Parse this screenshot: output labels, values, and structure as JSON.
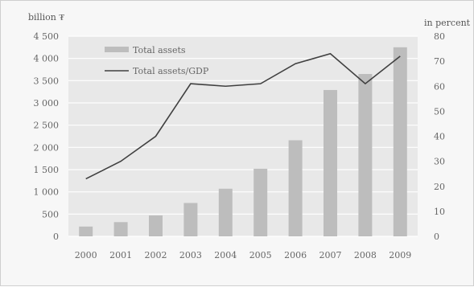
{
  "chart_data": {
    "type": "bar",
    "categories": [
      "2000",
      "2001",
      "2002",
      "2003",
      "2004",
      "2005",
      "2006",
      "2007",
      "2008",
      "2009"
    ],
    "series": [
      {
        "name": "Total assets",
        "type": "bar",
        "axis": "left",
        "values": [
          220,
          320,
          470,
          750,
          1070,
          1520,
          2160,
          3290,
          3650,
          4250
        ]
      },
      {
        "name": "Total assets/GDP",
        "type": "line",
        "axis": "right",
        "values": [
          23,
          30,
          40,
          61,
          60,
          61,
          69,
          73,
          61,
          72
        ]
      }
    ],
    "left_axis": {
      "label": "billion ₮",
      "ylim": [
        0,
        4500
      ],
      "ticks": [
        "0",
        "500",
        "1 000",
        "1 500",
        "2 000",
        "2 500",
        "3 000",
        "3 500",
        "4 000",
        "4 500"
      ]
    },
    "right_axis": {
      "label": "in percent",
      "ylim": [
        0,
        80
      ],
      "ticks": [
        "0",
        "10",
        "20",
        "30",
        "40",
        "50",
        "60",
        "70",
        "80"
      ]
    },
    "grid": true,
    "legend": "top-left",
    "colors": {
      "bar": "#bdbdbd",
      "line": "#404040",
      "plot_bg": "#e8e8e8",
      "grid": "#ffffff"
    }
  }
}
